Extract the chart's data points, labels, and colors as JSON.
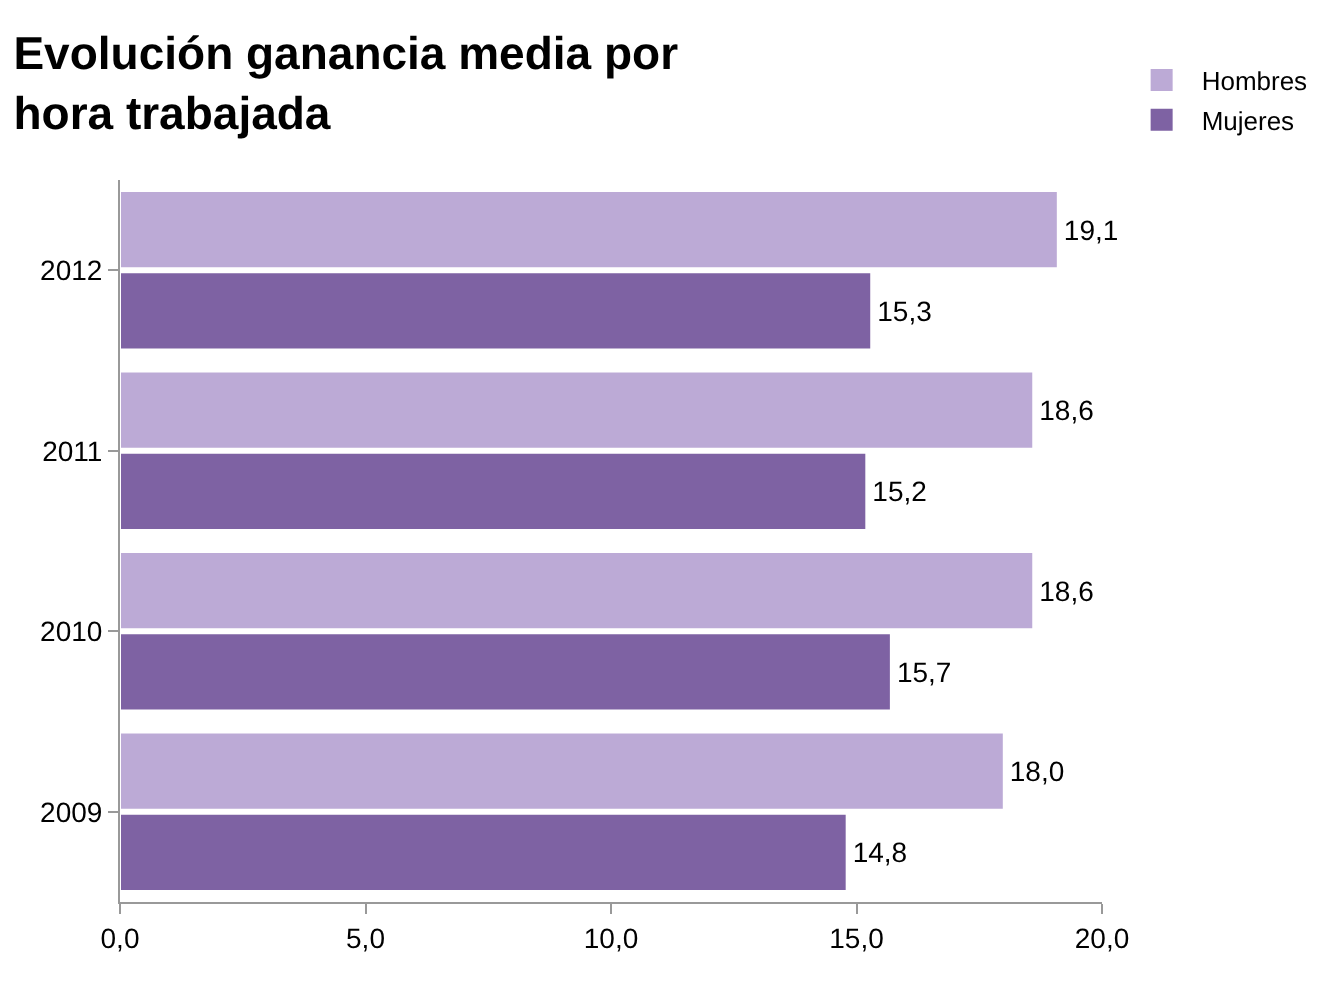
{
  "chart_data": {
    "type": "bar",
    "orientation": "horizontal",
    "title": "Evolución ganancia media por\nhora trabajada",
    "categories": [
      "2012",
      "2011",
      "2010",
      "2009"
    ],
    "series": [
      {
        "name": "Hombres",
        "color": "#bcaad6",
        "values": [
          19.1,
          18.6,
          18.6,
          18.0
        ],
        "value_labels": [
          "19,1",
          "18,6",
          "18,6",
          "18,0"
        ]
      },
      {
        "name": "Mujeres",
        "color": "#7e62a3",
        "values": [
          15.3,
          15.2,
          15.7,
          14.8
        ],
        "value_labels": [
          "15,3",
          "15,2",
          "15,7",
          "14,8"
        ]
      }
    ],
    "xlim": [
      0,
      20
    ],
    "xticks": [
      {
        "value": 0,
        "label": "0,0"
      },
      {
        "value": 5,
        "label": "5,0"
      },
      {
        "value": 10,
        "label": "10,0"
      },
      {
        "value": 15,
        "label": "15,0"
      },
      {
        "value": 20,
        "label": "20,0"
      }
    ],
    "grid": false,
    "legend": "top right"
  }
}
